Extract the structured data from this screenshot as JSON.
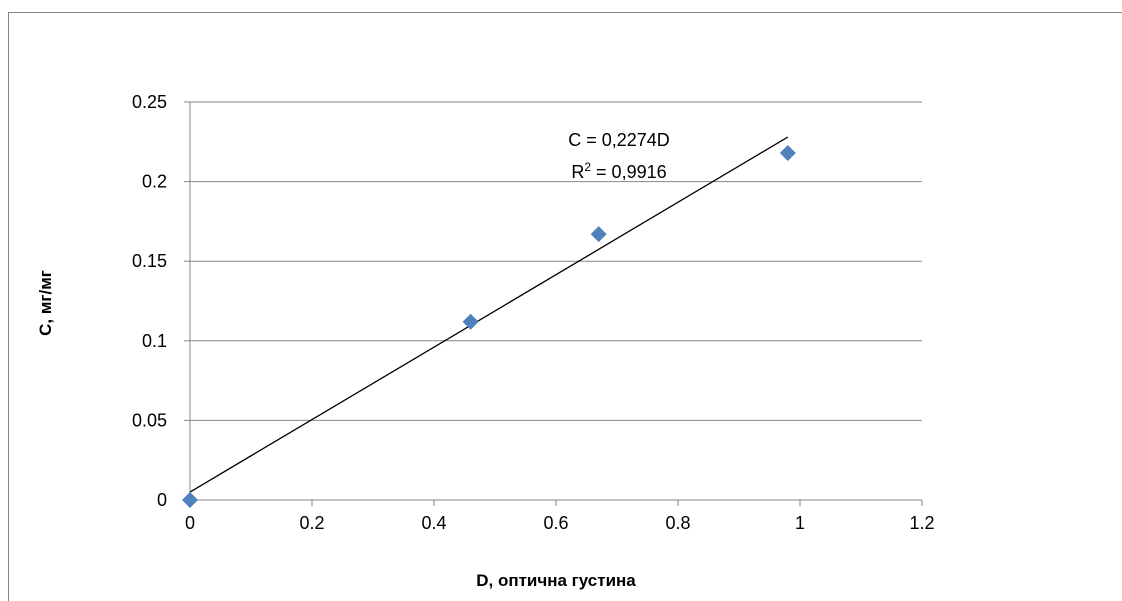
{
  "chart_data": {
    "type": "scatter",
    "title": "",
    "xlabel": "D, оптична густина",
    "ylabel": "C, мг/мг",
    "xlim": [
      0,
      1.2
    ],
    "ylim": [
      0,
      0.25
    ],
    "x_ticks": [
      "0",
      "0.2",
      "0.4",
      "0.6",
      "0.8",
      "1",
      "1.2"
    ],
    "y_ticks": [
      "0",
      "0.05",
      "0.1",
      "0.15",
      "0.2",
      "0.25"
    ],
    "grid": "horizontal",
    "legend": "none",
    "series": [
      {
        "x": [
          0,
          0.46,
          0.67,
          0.98
        ],
        "y": [
          0,
          0.112,
          0.167,
          0.218
        ],
        "color": "#4f81bd",
        "marker": "diamond"
      }
    ],
    "trendline": {
      "type": "linear",
      "x": [
        0,
        0.98
      ],
      "y": [
        0.005,
        0.228
      ],
      "color": "#000000"
    },
    "annotations": {
      "equation": "C = 0,2274D",
      "r2_prefix": "R",
      "r2_sup": "2",
      "r2_suffix": " = 0,9916"
    }
  }
}
